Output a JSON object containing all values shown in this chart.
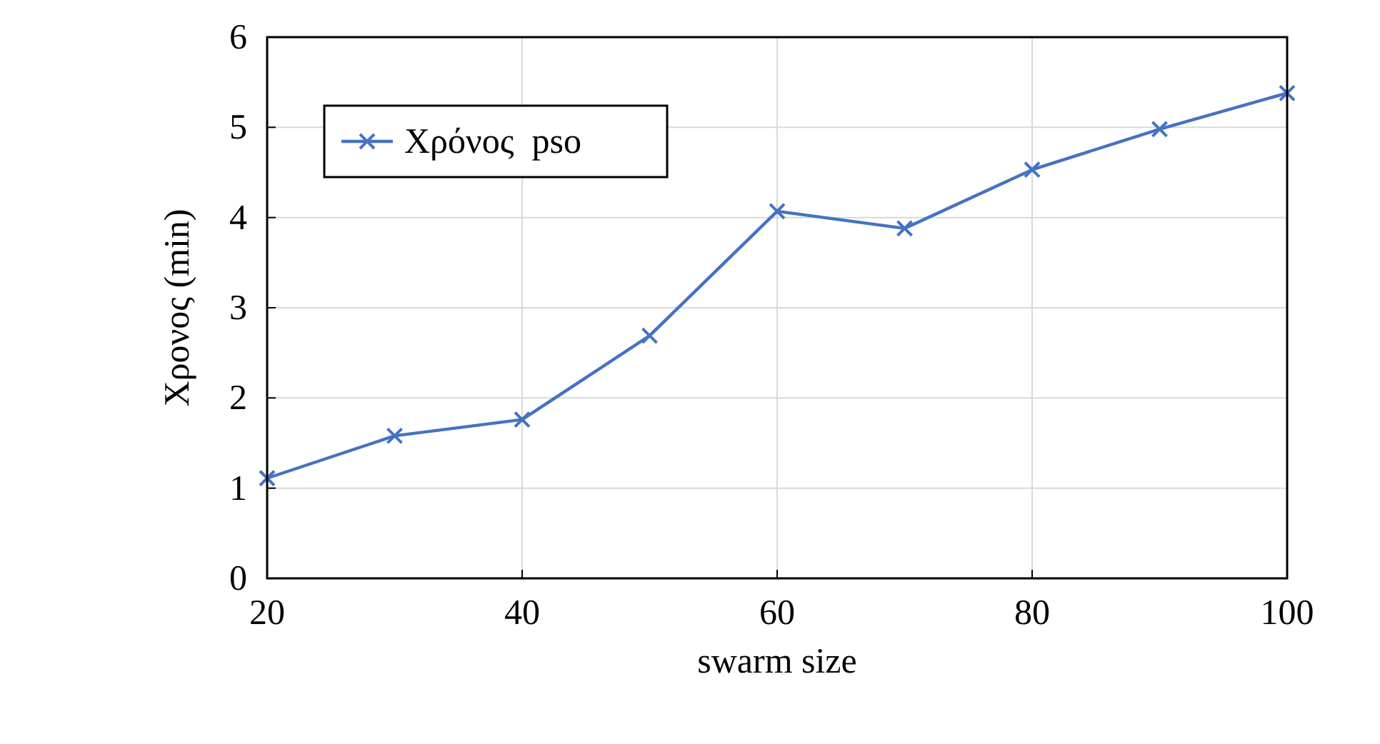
{
  "chart_data": {
    "type": "line",
    "xlabel": "swarm size",
    "ylabel": "Χρονος (min)",
    "x": [
      20,
      30,
      40,
      50,
      60,
      70,
      80,
      90,
      100
    ],
    "series": [
      {
        "name": "Χρόνος  pso",
        "color": "#4472c4",
        "values": [
          1.11,
          1.58,
          1.76,
          2.69,
          4.07,
          3.88,
          4.53,
          4.98,
          5.38
        ]
      }
    ],
    "xlim": [
      20,
      100
    ],
    "xticks": [
      20,
      40,
      60,
      80,
      100
    ],
    "ylim": [
      0,
      6
    ],
    "yticks": [
      0,
      1,
      2,
      3,
      4,
      5,
      6
    ],
    "grid": true,
    "legend": "top left",
    "marker": "cross",
    "line_style": "solid"
  }
}
